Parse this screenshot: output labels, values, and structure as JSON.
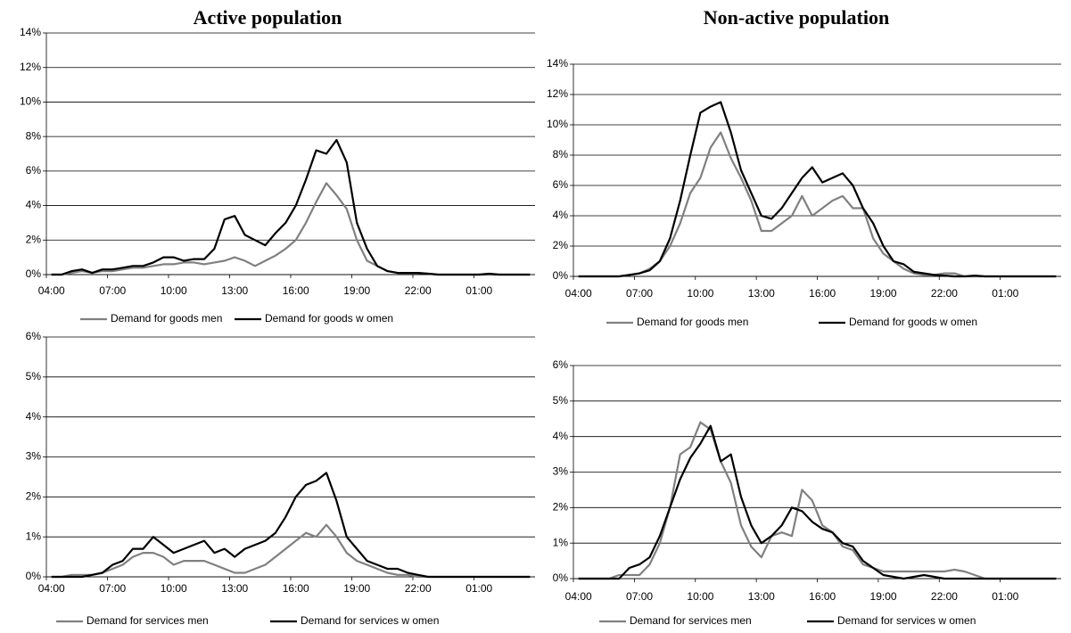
{
  "headings": [
    "Active population",
    "Non-active population"
  ],
  "chart_data": [
    {
      "type": "line",
      "categories": [
        "04:00",
        null,
        null,
        null,
        null,
        null,
        "07:00",
        null,
        null,
        null,
        null,
        null,
        "10:00",
        null,
        null,
        null,
        null,
        null,
        "13:00",
        null,
        null,
        null,
        null,
        null,
        "16:00",
        null,
        null,
        null,
        null,
        null,
        "19:00",
        null,
        null,
        null,
        null,
        null,
        "22:00",
        null,
        null,
        null,
        null,
        null,
        "01:00",
        null,
        null,
        null,
        null,
        null
      ],
      "ylim": [
        0,
        14
      ],
      "yticks": [
        {
          "value": 0,
          "label": "0%"
        },
        {
          "value": 2,
          "label": "2%"
        },
        {
          "value": 4,
          "label": "4%"
        },
        {
          "value": 6,
          "label": "6%"
        },
        {
          "value": 8,
          "label": "8%"
        },
        {
          "value": 10,
          "label": "10%"
        },
        {
          "value": 12,
          "label": "12%"
        },
        {
          "value": 14,
          "label": "14%"
        }
      ],
      "grid": true,
      "series": [
        {
          "name": "Demand for goods men",
          "color": "#808080",
          "values": [
            0,
            0,
            0.1,
            0.2,
            0.1,
            0.2,
            0.2,
            0.3,
            0.4,
            0.4,
            0.5,
            0.6,
            0.6,
            0.7,
            0.7,
            0.6,
            0.7,
            0.8,
            1.0,
            0.8,
            0.5,
            0.8,
            1.1,
            1.5,
            2.0,
            3.0,
            4.2,
            5.3,
            4.6,
            3.8,
            2.0,
            0.8,
            0.5,
            0.2,
            0.1,
            0.1,
            0.1,
            0.05,
            0,
            0,
            0,
            0,
            0,
            0,
            0,
            0,
            0,
            0
          ]
        },
        {
          "name": "Demand for goods w omen",
          "color": "#000000",
          "values": [
            0,
            0,
            0.2,
            0.3,
            0.1,
            0.3,
            0.3,
            0.4,
            0.5,
            0.5,
            0.7,
            1.0,
            1.0,
            0.8,
            0.9,
            0.9,
            1.5,
            3.2,
            3.4,
            2.3,
            2.0,
            1.7,
            2.4,
            3.0,
            4.0,
            5.5,
            7.2,
            7.0,
            7.8,
            6.5,
            3.0,
            1.5,
            0.5,
            0.2,
            0.1,
            0.1,
            0.1,
            0.05,
            0,
            0,
            0,
            0,
            0,
            0.05,
            0,
            0,
            0,
            0
          ]
        }
      ]
    },
    {
      "type": "line",
      "categories": [
        "04:00",
        null,
        null,
        null,
        null,
        null,
        "07:00",
        null,
        null,
        null,
        null,
        null,
        "10:00",
        null,
        null,
        null,
        null,
        null,
        "13:00",
        null,
        null,
        null,
        null,
        null,
        "16:00",
        null,
        null,
        null,
        null,
        null,
        "19:00",
        null,
        null,
        null,
        null,
        null,
        "22:00",
        null,
        null,
        null,
        null,
        null,
        "01:00",
        null,
        null,
        null,
        null,
        null
      ],
      "ylim": [
        0,
        14
      ],
      "yticks": [
        {
          "value": 0,
          "label": "0%"
        },
        {
          "value": 2,
          "label": "2%"
        },
        {
          "value": 4,
          "label": "4%"
        },
        {
          "value": 6,
          "label": "6%"
        },
        {
          "value": 8,
          "label": "8%"
        },
        {
          "value": 10,
          "label": "10%"
        },
        {
          "value": 12,
          "label": "12%"
        },
        {
          "value": 14,
          "label": "14%"
        }
      ],
      "grid": true,
      "series": [
        {
          "name": "Demand for goods men",
          "color": "#808080",
          "values": [
            0,
            0,
            0,
            0,
            0,
            0.1,
            0.2,
            0.5,
            1.0,
            2.0,
            3.5,
            5.5,
            6.5,
            8.5,
            9.5,
            7.8,
            6.5,
            5.0,
            3.0,
            3.0,
            3.5,
            4.0,
            5.3,
            4.0,
            4.5,
            5.0,
            5.3,
            4.5,
            4.5,
            2.5,
            1.5,
            1.0,
            0.5,
            0.2,
            0.1,
            0.1,
            0.2,
            0.2,
            0,
            0,
            0,
            0,
            0,
            0,
            0,
            0,
            0,
            0
          ]
        },
        {
          "name": "Demand for goods w omen",
          "color": "#000000",
          "values": [
            0,
            0,
            0,
            0,
            0,
            0.1,
            0.2,
            0.4,
            1.0,
            2.5,
            5.0,
            8.0,
            10.8,
            11.2,
            11.5,
            9.5,
            7.0,
            5.5,
            4.0,
            3.8,
            4.5,
            5.5,
            6.5,
            7.2,
            6.2,
            6.5,
            6.8,
            6.0,
            4.5,
            3.5,
            2.0,
            1.0,
            0.8,
            0.3,
            0.2,
            0.1,
            0.05,
            0,
            0,
            0.05,
            0,
            0,
            0,
            0,
            0,
            0,
            0,
            0
          ]
        }
      ]
    },
    {
      "type": "line",
      "categories": [
        "04:00",
        null,
        null,
        null,
        null,
        null,
        "07:00",
        null,
        null,
        null,
        null,
        null,
        "10:00",
        null,
        null,
        null,
        null,
        null,
        "13:00",
        null,
        null,
        null,
        null,
        null,
        "16:00",
        null,
        null,
        null,
        null,
        null,
        "19:00",
        null,
        null,
        null,
        null,
        null,
        "22:00",
        null,
        null,
        null,
        null,
        null,
        "01:00",
        null,
        null,
        null,
        null,
        null
      ],
      "ylim": [
        0,
        6
      ],
      "yticks": [
        {
          "value": 0,
          "label": "0%"
        },
        {
          "value": 1,
          "label": "1%"
        },
        {
          "value": 2,
          "label": "2%"
        },
        {
          "value": 3,
          "label": "3%"
        },
        {
          "value": 4,
          "label": "4%"
        },
        {
          "value": 5,
          "label": "5%"
        },
        {
          "value": 6,
          "label": "6%"
        }
      ],
      "grid": true,
      "series": [
        {
          "name": "Demand for services men",
          "color": "#808080",
          "values": [
            0,
            0,
            0.05,
            0.05,
            0.05,
            0.1,
            0.2,
            0.3,
            0.5,
            0.6,
            0.6,
            0.5,
            0.3,
            0.4,
            0.4,
            0.4,
            0.3,
            0.2,
            0.1,
            0.1,
            0.2,
            0.3,
            0.5,
            0.7,
            0.9,
            1.1,
            1.0,
            1.3,
            1.0,
            0.6,
            0.4,
            0.3,
            0.2,
            0.1,
            0.05,
            0.05,
            0,
            0,
            0,
            0,
            0,
            0,
            0,
            0,
            0,
            0,
            0,
            0
          ]
        },
        {
          "name": "Demand for services w omen",
          "color": "#000000",
          "values": [
            0,
            0,
            0,
            0,
            0.05,
            0.1,
            0.3,
            0.4,
            0.7,
            0.7,
            1.0,
            0.8,
            0.6,
            0.7,
            0.8,
            0.9,
            0.6,
            0.7,
            0.5,
            0.7,
            0.8,
            0.9,
            1.1,
            1.5,
            2.0,
            2.3,
            2.4,
            2.6,
            1.9,
            1.0,
            0.7,
            0.4,
            0.3,
            0.2,
            0.2,
            0.1,
            0.05,
            0,
            0,
            0,
            0,
            0,
            0,
            0,
            0,
            0,
            0,
            0
          ]
        }
      ]
    },
    {
      "type": "line",
      "categories": [
        "04:00",
        null,
        null,
        null,
        null,
        null,
        "07:00",
        null,
        null,
        null,
        null,
        null,
        "10:00",
        null,
        null,
        null,
        null,
        null,
        "13:00",
        null,
        null,
        null,
        null,
        null,
        "16:00",
        null,
        null,
        null,
        null,
        null,
        "19:00",
        null,
        null,
        null,
        null,
        null,
        "22:00",
        null,
        null,
        null,
        null,
        null,
        "01:00",
        null,
        null,
        null,
        null,
        null
      ],
      "ylim": [
        0,
        6
      ],
      "yticks": [
        {
          "value": 0,
          "label": "0%"
        },
        {
          "value": 1,
          "label": "1%"
        },
        {
          "value": 2,
          "label": "2%"
        },
        {
          "value": 3,
          "label": "3%"
        },
        {
          "value": 4,
          "label": "4%"
        },
        {
          "value": 5,
          "label": "5%"
        },
        {
          "value": 6,
          "label": "6%"
        }
      ],
      "grid": true,
      "series": [
        {
          "name": "Demand for services men",
          "color": "#808080",
          "values": [
            0,
            0,
            0,
            0,
            0.1,
            0.1,
            0.1,
            0.4,
            1.0,
            2.0,
            3.5,
            3.7,
            4.4,
            4.2,
            3.3,
            2.7,
            1.5,
            0.9,
            0.6,
            1.2,
            1.3,
            1.2,
            2.5,
            2.2,
            1.5,
            1.3,
            0.9,
            0.8,
            0.4,
            0.3,
            0.2,
            0.2,
            0.2,
            0.2,
            0.2,
            0.2,
            0.2,
            0.25,
            0.2,
            0.1,
            0,
            0,
            0,
            0,
            0,
            0,
            0,
            0
          ]
        },
        {
          "name": "Demand for services w omen",
          "color": "#000000",
          "values": [
            0,
            0,
            0,
            0,
            0,
            0.3,
            0.4,
            0.6,
            1.2,
            2.0,
            2.8,
            3.4,
            3.8,
            4.3,
            3.3,
            3.5,
            2.3,
            1.5,
            1.0,
            1.2,
            1.5,
            2.0,
            1.9,
            1.6,
            1.4,
            1.3,
            1.0,
            0.9,
            0.5,
            0.3,
            0.1,
            0.05,
            0,
            0.05,
            0.1,
            0.05,
            0,
            0,
            0,
            0,
            0,
            0,
            0,
            0,
            0,
            0,
            0,
            0
          ]
        }
      ]
    }
  ]
}
